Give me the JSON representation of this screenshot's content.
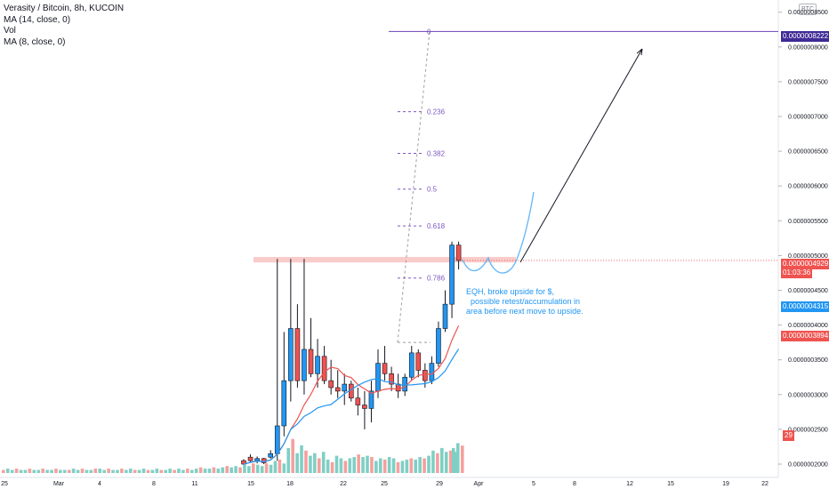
{
  "legend": {
    "title": "Verasity / Bitcoin, 8h, KUCOIN",
    "ma14": "MA (14, close, 0)",
    "vol": "Vol",
    "ma8": "MA (8, close, 0)"
  },
  "currency_tag": "BTC",
  "annotation": "EQH, broke upside for $,\n  possible retest/accumulation in\narea before next move to upside.",
  "price_badges": {
    "target": "0.0000008222",
    "last": "0.0000004929",
    "countdown": "01:03:36",
    "ma14": "0.0000004315",
    "ma8": "0.0000003894",
    "volume": "29"
  },
  "colors": {
    "up": "#2196f3",
    "down": "#ef5350",
    "vol_up": "#7fcfc4",
    "vol_down": "#f4a09e",
    "ma14": "#2196f3",
    "ma8": "#ef5350",
    "fib": "#7e57c2",
    "resistance": "#f8c3c1",
    "projection": "#64b5f6"
  },
  "chart_data": {
    "type": "candlestick",
    "y_axis": {
      "ticks": [
        "0.0000008500",
        "0.0000008000",
        "0.0000007500",
        "0.0000007000",
        "0.0000006500",
        "0.0000006000",
        "0.0000005500",
        "0.0000005000",
        "0.0000004500",
        "0.0000004000",
        "0.0000003500",
        "0.0000003000",
        "0.0000002500",
        "0.0000002000"
      ]
    },
    "x_axis": {
      "ticks": [
        "25",
        "Mar",
        "4",
        "8",
        "11",
        "15",
        "18",
        "22",
        "25",
        "29",
        "Apr",
        "5",
        "8",
        "12",
        "15",
        "19",
        "22"
      ]
    },
    "fibonacci": {
      "levels": [
        "0",
        "0.236",
        "0.382",
        "0.5",
        "0.618",
        "0.786"
      ],
      "prices": [
        8.222e-07,
        7.068e-07,
        6.469e-07,
        5.955e-07,
        5.425e-07,
        4.676e-07
      ]
    },
    "resistance_zone": [
      4.9e-07,
      4.98e-07
    ],
    "candles": [
      {
        "o": 2.05e-07,
        "h": 2.07e-07,
        "l": 1.99e-07,
        "c": 2e-07
      },
      {
        "o": 2.1e-07,
        "h": 2.14e-07,
        "l": 2.03e-07,
        "c": 2.05e-07
      },
      {
        "o": 2.05e-07,
        "h": 2.11e-07,
        "l": 2.01e-07,
        "c": 2.08e-07
      },
      {
        "o": 2.08e-07,
        "h": 2.09e-07,
        "l": 2e-07,
        "c": 2.02e-07
      },
      {
        "o": 2.1e-07,
        "h": 2.2e-07,
        "l": 2.08e-07,
        "c": 2.15e-07
      },
      {
        "o": 2.15e-07,
        "h": 4.95e-07,
        "l": 2.05e-07,
        "c": 2.55e-07
      },
      {
        "o": 2.55e-07,
        "h": 3.9e-07,
        "l": 2.4e-07,
        "c": 3.2e-07
      },
      {
        "o": 3.2e-07,
        "h": 4.95e-07,
        "l": 2.9e-07,
        "c": 3.95e-07
      },
      {
        "o": 3.95e-07,
        "h": 4.3e-07,
        "l": 3.1e-07,
        "c": 3.2e-07
      },
      {
        "o": 3.2e-07,
        "h": 4.95e-07,
        "l": 3e-07,
        "c": 3.65e-07
      },
      {
        "o": 3.65e-07,
        "h": 4.1e-07,
        "l": 3.25e-07,
        "c": 3.3e-07
      },
      {
        "o": 3.3e-07,
        "h": 3.8e-07,
        "l": 3.1e-07,
        "c": 3.55e-07
      },
      {
        "o": 3.55e-07,
        "h": 3.7e-07,
        "l": 3.15e-07,
        "c": 3.2e-07
      },
      {
        "o": 3.2e-07,
        "h": 3.5e-07,
        "l": 3e-07,
        "c": 3.1e-07
      },
      {
        "o": 3.1e-07,
        "h": 3.35e-07,
        "l": 2.95e-07,
        "c": 3.05e-07
      },
      {
        "o": 3.05e-07,
        "h": 3.3e-07,
        "l": 2.85e-07,
        "c": 3.15e-07
      },
      {
        "o": 3.15e-07,
        "h": 3.2e-07,
        "l": 2.9e-07,
        "c": 2.95e-07
      },
      {
        "o": 2.95e-07,
        "h": 3.1e-07,
        "l": 2.7e-07,
        "c": 2.85e-07
      },
      {
        "o": 2.85e-07,
        "h": 3.05e-07,
        "l": 2.5e-07,
        "c": 2.8e-07
      },
      {
        "o": 2.8e-07,
        "h": 3.2e-07,
        "l": 2.6e-07,
        "c": 3.05e-07
      },
      {
        "o": 3.05e-07,
        "h": 3.65e-07,
        "l": 2.95e-07,
        "c": 3.45e-07
      },
      {
        "o": 3.45e-07,
        "h": 3.7e-07,
        "l": 3.2e-07,
        "c": 3.3e-07
      },
      {
        "o": 3.3e-07,
        "h": 3.4e-07,
        "l": 3.05e-07,
        "c": 3.15e-07
      },
      {
        "o": 3.15e-07,
        "h": 3.3e-07,
        "l": 2.95e-07,
        "c": 3.05e-07
      },
      {
        "o": 3.05e-07,
        "h": 3.3e-07,
        "l": 2.98e-07,
        "c": 3.25e-07
      },
      {
        "o": 3.25e-07,
        "h": 3.7e-07,
        "l": 3.2e-07,
        "c": 3.6e-07
      },
      {
        "o": 3.6e-07,
        "h": 3.65e-07,
        "l": 3.25e-07,
        "c": 3.35e-07
      },
      {
        "o": 3.35e-07,
        "h": 3.45e-07,
        "l": 3.1e-07,
        "c": 3.2e-07
      },
      {
        "o": 3.2e-07,
        "h": 3.55e-07,
        "l": 3.15e-07,
        "c": 3.45e-07
      },
      {
        "o": 3.45e-07,
        "h": 4.05e-07,
        "l": 3.4e-07,
        "c": 3.95e-07
      },
      {
        "o": 3.95e-07,
        "h": 4.5e-07,
        "l": 3.9e-07,
        "c": 4.3e-07
      },
      {
        "o": 4.3e-07,
        "h": 5.2e-07,
        "l": 4.1e-07,
        "c": 5.15e-07
      },
      {
        "o": 5.15e-07,
        "h": 5.2e-07,
        "l": 4.8e-07,
        "c": 4.929e-07
      }
    ],
    "volume_pattern": [
      1,
      2,
      1,
      2,
      1,
      1,
      2,
      1,
      1,
      2,
      1,
      1,
      2,
      1,
      1,
      1,
      2,
      1,
      2,
      1,
      1,
      2,
      2,
      1,
      2,
      1,
      1,
      2,
      1,
      2,
      1,
      1,
      2,
      1,
      1,
      2,
      1,
      1,
      2,
      1,
      2,
      1,
      2,
      1,
      2,
      3,
      2,
      2,
      3,
      2,
      3,
      4,
      3,
      4,
      3,
      5,
      4,
      6,
      5,
      4,
      6,
      5,
      8,
      9,
      6,
      18,
      25,
      14,
      20,
      16,
      12,
      14,
      10,
      15,
      9,
      7,
      12,
      10,
      8,
      10,
      11,
      13,
      11,
      12,
      11,
      8,
      10,
      9,
      11,
      10,
      7,
      8,
      9,
      10,
      9,
      11,
      10,
      12,
      16,
      14,
      18,
      15,
      16,
      15
    ],
    "volume_last": 29
  }
}
